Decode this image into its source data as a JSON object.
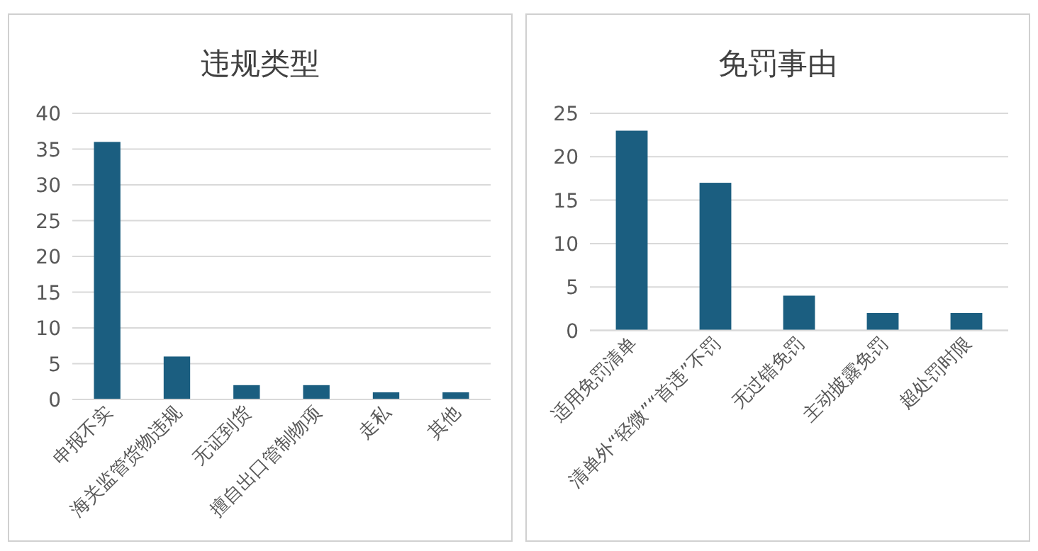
{
  "chart_data": [
    {
      "type": "bar",
      "title": "违规类型",
      "categories": [
        "申报不实",
        "海关监管货物违规",
        "无证到货",
        "擅自出口管制物项",
        "走私",
        "其他"
      ],
      "values": [
        36,
        6,
        2,
        2,
        1,
        1
      ],
      "color": "#1b5e80",
      "ylim": [
        0,
        40
      ],
      "yticks": [
        0,
        5,
        10,
        15,
        20,
        25,
        30,
        35,
        40
      ],
      "grid": "y"
    },
    {
      "type": "bar",
      "title": "免罚事由",
      "categories": [
        "适用免罚清单",
        "清单外“轻微”“首违”不罚",
        "无过错免罚",
        "主动披露免罚",
        "超处罚时限"
      ],
      "values": [
        23,
        17,
        4,
        2,
        2
      ],
      "color": "#1b5e80",
      "ylim": [
        0,
        25
      ],
      "yticks": [
        0,
        5,
        10,
        15,
        20,
        25
      ],
      "grid": "y"
    }
  ]
}
